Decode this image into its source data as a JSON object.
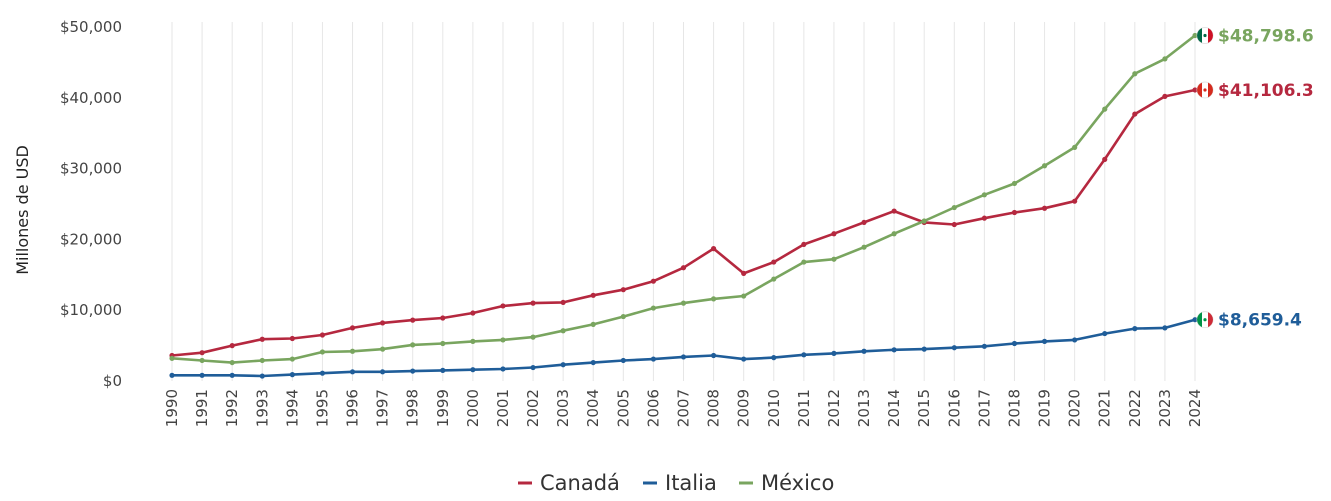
{
  "chart_data": {
    "type": "line",
    "title": "",
    "xlabel": "",
    "ylabel": "Millones de USD",
    "ylim": [
      0,
      50000
    ],
    "yticks": [
      0,
      10000,
      20000,
      30000,
      40000,
      50000
    ],
    "ytick_labels": [
      "$0",
      "$10,000",
      "$20,000",
      "$30,000",
      "$40,000",
      "$50,000"
    ],
    "grid": "vertical",
    "legend_position": "bottom-center",
    "categories": [
      "1990",
      "1991",
      "1992",
      "1993",
      "1994",
      "1995",
      "1996",
      "1997",
      "1998",
      "1999",
      "2000",
      "2001",
      "2002",
      "2003",
      "2004",
      "2005",
      "2006",
      "2007",
      "2008",
      "2009",
      "2010",
      "2011",
      "2012",
      "2013",
      "2014",
      "2015",
      "2016",
      "2017",
      "2018",
      "2019",
      "2020",
      "2021",
      "2022",
      "2023",
      "2024"
    ],
    "series": [
      {
        "name": "Canadá",
        "color": "#b5283f",
        "values": [
          3600,
          4000,
          5000,
          5900,
          6000,
          6500,
          7500,
          8200,
          8600,
          8900,
          9600,
          10600,
          11000,
          11100,
          12100,
          12900,
          14100,
          16000,
          18700,
          15200,
          16800,
          19300,
          20800,
          22400,
          24000,
          22400,
          22100,
          23000,
          23800,
          24400,
          25400,
          31300,
          37700,
          40200,
          41106.3
        ],
        "end_label": "$41,106.3"
      },
      {
        "name": "Italia",
        "color": "#1f5d99",
        "values": [
          800,
          800,
          800,
          700,
          900,
          1100,
          1300,
          1300,
          1400,
          1500,
          1600,
          1700,
          1900,
          2300,
          2600,
          2900,
          3100,
          3400,
          3600,
          3100,
          3300,
          3700,
          3900,
          4200,
          4400,
          4500,
          4700,
          4900,
          5300,
          5600,
          5800,
          6700,
          7400,
          7500,
          8659.4
        ],
        "end_label": "$8,659.4"
      },
      {
        "name": "México",
        "color": "#79a55f",
        "values": [
          3200,
          2900,
          2600,
          2900,
          3100,
          4100,
          4200,
          4500,
          5100,
          5300,
          5600,
          5800,
          6200,
          7100,
          8000,
          9100,
          10300,
          11000,
          11600,
          12000,
          14400,
          16800,
          17200,
          18900,
          20800,
          22600,
          24500,
          26300,
          27900,
          30400,
          33000,
          38400,
          43400,
          45500,
          48798.6
        ],
        "end_label": "$48,798.6"
      }
    ]
  }
}
